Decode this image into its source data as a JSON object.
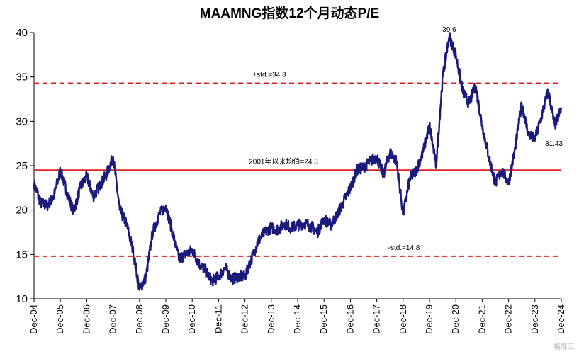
{
  "chart_data": {
    "type": "line",
    "title": "MAAMNG指数12个月动态P/E",
    "ylim": [
      10,
      40
    ],
    "yticks": [
      "10",
      "15",
      "20",
      "25",
      "30",
      "35",
      "40"
    ],
    "x_range": [
      "2004-12",
      "2024-12"
    ],
    "xticks": [
      "Dec-04",
      "Dec-05",
      "Dec-06",
      "Dec-07",
      "Dec-08",
      "Dec-09",
      "Dec-10",
      "Dec-11",
      "Dec-12",
      "Dec-13",
      "Dec-14",
      "Dec-15",
      "Dec-16",
      "Dec-17",
      "Dec-18",
      "Dec-19",
      "Dec-20",
      "Dec-21",
      "Dec-22",
      "Dec-23",
      "Dec-24"
    ],
    "series": [
      {
        "color": "#1a1a7a",
        "points": [
          [
            "2004-12",
            23.0
          ],
          [
            "2005-03",
            20.8
          ],
          [
            "2005-06",
            20.5
          ],
          [
            "2005-09",
            21.5
          ],
          [
            "2005-12",
            24.5
          ],
          [
            "2006-03",
            22.0
          ],
          [
            "2006-06",
            19.8
          ],
          [
            "2006-09",
            22.5
          ],
          [
            "2006-12",
            23.8
          ],
          [
            "2007-03",
            21.5
          ],
          [
            "2007-06",
            22.8
          ],
          [
            "2007-09",
            24.0
          ],
          [
            "2007-12",
            26.0
          ],
          [
            "2008-03",
            20.0
          ],
          [
            "2008-06",
            18.5
          ],
          [
            "2008-09",
            15.5
          ],
          [
            "2008-12",
            11.0
          ],
          [
            "2009-03",
            12.5
          ],
          [
            "2009-06",
            17.5
          ],
          [
            "2009-09",
            19.5
          ],
          [
            "2009-12",
            20.5
          ],
          [
            "2010-03",
            17.5
          ],
          [
            "2010-06",
            14.5
          ],
          [
            "2010-09",
            15.0
          ],
          [
            "2010-12",
            15.5
          ],
          [
            "2011-03",
            14.0
          ],
          [
            "2011-06",
            13.2
          ],
          [
            "2011-09",
            12.0
          ],
          [
            "2011-12",
            12.5
          ],
          [
            "2012-03",
            13.5
          ],
          [
            "2012-06",
            12.2
          ],
          [
            "2012-09",
            12.5
          ],
          [
            "2012-12",
            12.5
          ],
          [
            "2013-03",
            14.5
          ],
          [
            "2013-06",
            16.5
          ],
          [
            "2013-09",
            17.5
          ],
          [
            "2013-12",
            18.0
          ],
          [
            "2014-03",
            17.8
          ],
          [
            "2014-06",
            18.5
          ],
          [
            "2014-09",
            18.0
          ],
          [
            "2014-12",
            18.3
          ],
          [
            "2015-03",
            18.5
          ],
          [
            "2015-06",
            18.2
          ],
          [
            "2015-09",
            17.5
          ],
          [
            "2015-12",
            19.0
          ],
          [
            "2016-03",
            18.3
          ],
          [
            "2016-06",
            19.5
          ],
          [
            "2016-09",
            21.0
          ],
          [
            "2016-12",
            22.5
          ],
          [
            "2017-03",
            24.5
          ],
          [
            "2017-06",
            24.8
          ],
          [
            "2017-09",
            25.5
          ],
          [
            "2017-12",
            26.0
          ],
          [
            "2018-03",
            24.0
          ],
          [
            "2018-06",
            26.5
          ],
          [
            "2018-09",
            25.5
          ],
          [
            "2018-12",
            19.5
          ],
          [
            "2019-03",
            23.5
          ],
          [
            "2019-06",
            24.5
          ],
          [
            "2019-09",
            26.5
          ],
          [
            "2019-12",
            29.5
          ],
          [
            "2020-03",
            25.0
          ],
          [
            "2020-06",
            35.0
          ],
          [
            "2020-09",
            39.6
          ],
          [
            "2020-12",
            37.5
          ],
          [
            "2021-03",
            33.5
          ],
          [
            "2021-06",
            32.0
          ],
          [
            "2021-09",
            34.0
          ],
          [
            "2021-12",
            29.5
          ],
          [
            "2022-03",
            26.0
          ],
          [
            "2022-06",
            23.0
          ],
          [
            "2022-09",
            24.5
          ],
          [
            "2022-12",
            23.0
          ],
          [
            "2023-03",
            27.0
          ],
          [
            "2023-06",
            32.0
          ],
          [
            "2023-09",
            28.5
          ],
          [
            "2023-12",
            28.0
          ],
          [
            "2024-03",
            30.5
          ],
          [
            "2024-06",
            33.5
          ],
          [
            "2024-09",
            29.5
          ],
          [
            "2024-12",
            31.4
          ]
        ]
      }
    ],
    "reference_lines": [
      {
        "label": "+std.=34.3",
        "value": 34.3,
        "color": "#e02020",
        "style": "dashed"
      },
      {
        "label": "2001年以来均值=24.5",
        "value": 24.5,
        "color": "#e02020",
        "style": "solid"
      },
      {
        "label": "-std.=14.8",
        "value": 14.8,
        "color": "#e02020",
        "style": "dashed"
      }
    ],
    "annotations": [
      {
        "text": "39.6",
        "x": "2020-09",
        "y": 39.6
      },
      {
        "text": "31.43",
        "x": "2024-12",
        "y": 31.4
      }
    ]
  },
  "watermark": "格隆汇"
}
